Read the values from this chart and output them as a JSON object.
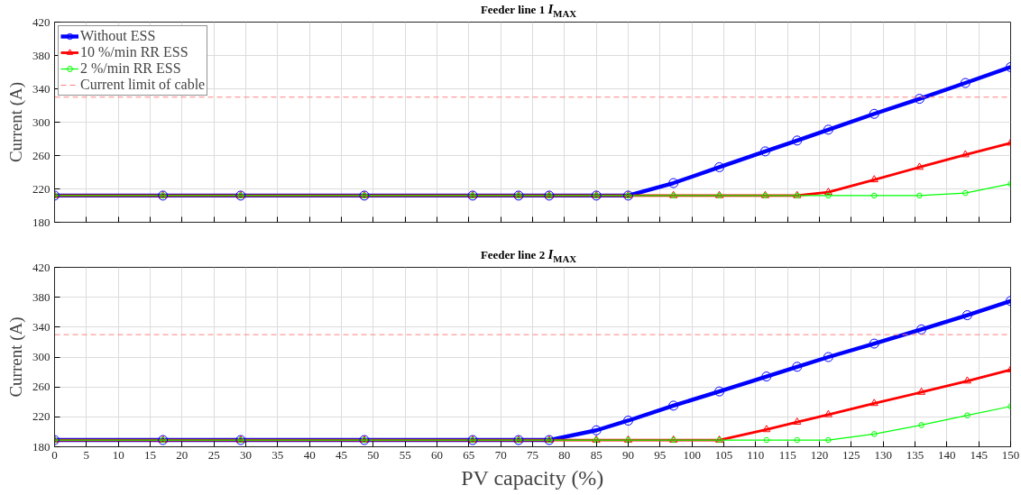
{
  "chart_data": [
    {
      "type": "line",
      "title": "Feeder line 1 I$_{MAX}$",
      "ylabel": "Current (A)",
      "x": [
        0,
        17,
        29.2,
        48.6,
        65.6,
        72.8,
        77.6,
        85,
        90,
        97.1,
        104.3,
        111.5,
        116.5,
        121.4,
        128.6,
        135.7,
        142.9,
        150
      ],
      "series": [
        {
          "name": "Without ESS",
          "color": "#0000ff",
          "marker": "circle",
          "values": [
            212,
            212,
            212,
            212,
            212,
            212,
            212,
            212,
            212,
            227,
            246,
            265,
            278,
            291,
            310,
            328,
            347,
            366
          ]
        },
        {
          "name": "10 %/min RR ESS",
          "color": "#ff0000",
          "marker": "triangle",
          "values": [
            212,
            212,
            212,
            212,
            212,
            212,
            212,
            212,
            212,
            212,
            212,
            212,
            212,
            216,
            231,
            246,
            261,
            275
          ]
        },
        {
          "name": "2 %/min RR ESS",
          "color": "#00ff00",
          "marker": "star",
          "values": [
            212,
            212,
            212,
            212,
            212,
            212,
            212,
            212,
            212,
            212,
            212,
            212,
            212,
            212,
            212,
            212,
            215,
            226
          ]
        }
      ],
      "ref_lines": [
        {
          "axis": "y",
          "value": 330,
          "label": "Current limit of cable",
          "color": "#ff8080",
          "line_style": "dashed"
        }
      ],
      "xlim": [
        0,
        150
      ],
      "xticks": [
        0,
        5,
        10,
        15,
        20,
        25,
        30,
        35,
        40,
        45,
        50,
        55,
        60,
        65,
        70,
        75,
        80,
        85,
        90,
        95,
        100,
        105,
        110,
        115,
        120,
        125,
        130,
        135,
        140,
        145,
        150
      ],
      "ylim": [
        180,
        420
      ],
      "yticks": [
        180,
        220,
        260,
        300,
        340,
        380,
        420
      ],
      "tick_labels": "y",
      "grid": true,
      "legend": "top left",
      "line_style": "solid"
    },
    {
      "type": "line",
      "title": "Feeder line 2 I$_{MAX}$",
      "ylabel": "Current (A)",
      "xlabel": "PV capacity (%)",
      "x": [
        0,
        17,
        29.2,
        48.6,
        65.6,
        72.8,
        77.6,
        85,
        90,
        97.1,
        104.3,
        111.7,
        116.5,
        121.4,
        128.6,
        136,
        143.2,
        150
      ],
      "series": [
        {
          "color": "#0000ff",
          "marker": "circle",
          "values": [
            189,
            189,
            189,
            189,
            189,
            189,
            189,
            202,
            215,
            235,
            254,
            274,
            287,
            300,
            318,
            337,
            356,
            375
          ]
        },
        {
          "color": "#ff0000",
          "marker": "triangle",
          "values": [
            189,
            189,
            189,
            189,
            189,
            189,
            189,
            189,
            189,
            189,
            189,
            203,
            213,
            223,
            238,
            253,
            268,
            283
          ]
        },
        {
          "color": "#00ff00",
          "marker": "star",
          "values": [
            189,
            189,
            189,
            189,
            189,
            189,
            189,
            189,
            189,
            189,
            189,
            189,
            189,
            189,
            197,
            209,
            222,
            234
          ]
        }
      ],
      "ref_lines": [
        {
          "axis": "y",
          "value": 330,
          "color": "#ff8080",
          "line_style": "dashed"
        }
      ],
      "xlim": [
        0,
        150
      ],
      "xticks": [
        0,
        5,
        10,
        15,
        20,
        25,
        30,
        35,
        40,
        45,
        50,
        55,
        60,
        65,
        70,
        75,
        80,
        85,
        90,
        95,
        100,
        105,
        110,
        115,
        120,
        125,
        130,
        135,
        140,
        145,
        150
      ],
      "ylim": [
        180,
        420
      ],
      "yticks": [
        180,
        220,
        260,
        300,
        340,
        380,
        420
      ],
      "grid": true,
      "line_style": "solid"
    }
  ]
}
